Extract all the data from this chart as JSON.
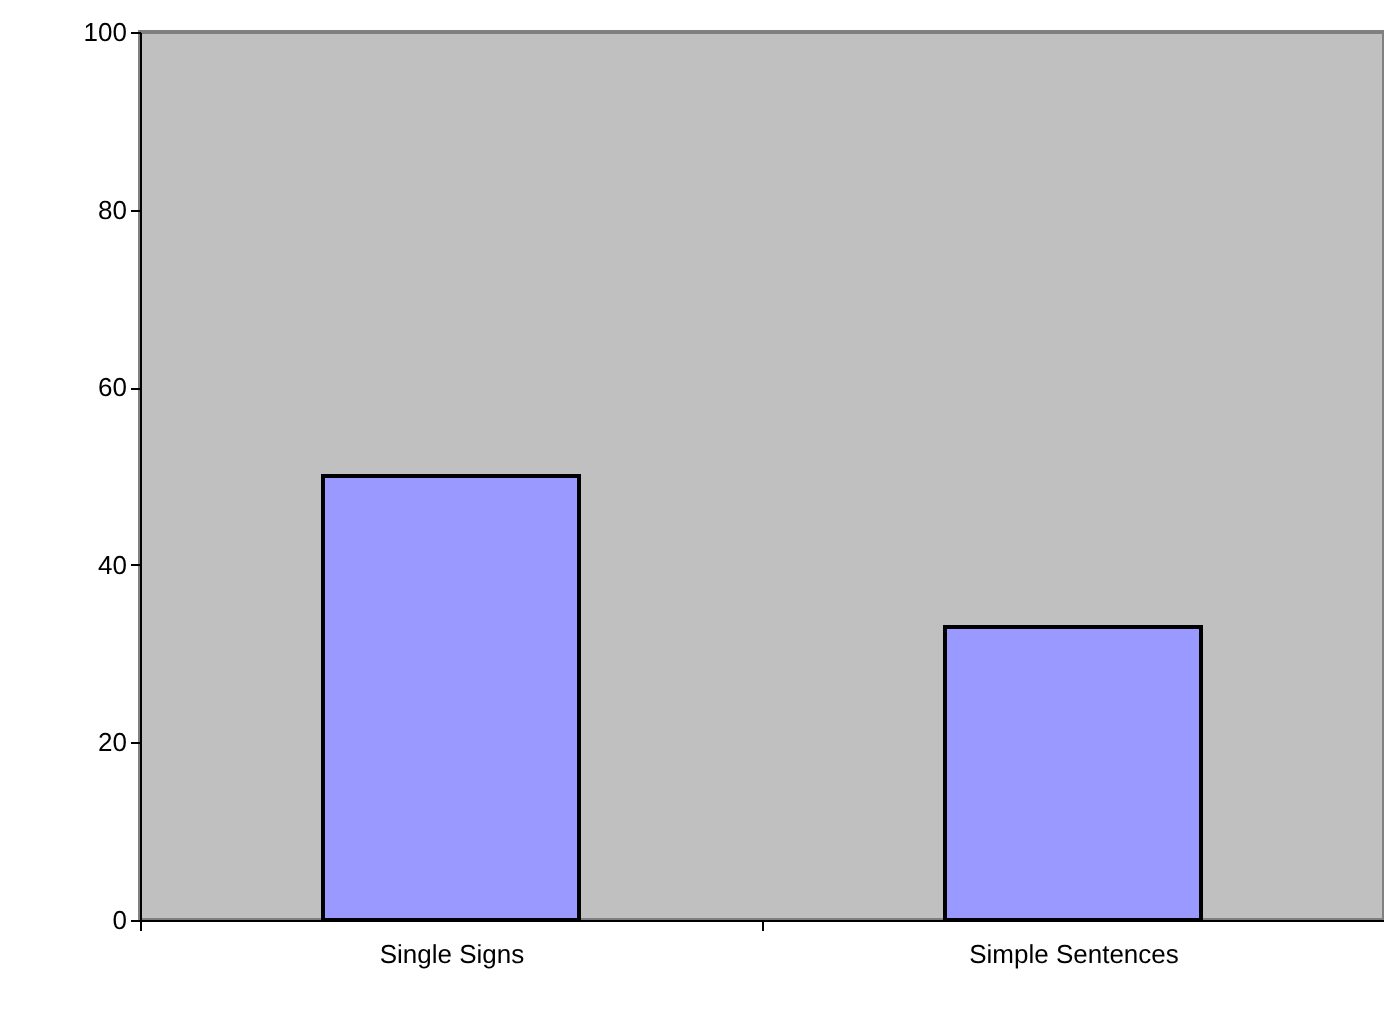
{
  "chart_data": {
    "type": "bar",
    "categories": [
      "Single Signs",
      "Simple Sentences"
    ],
    "values": [
      50,
      33
    ],
    "color": "#9999ff",
    "ylim": [
      0,
      100
    ],
    "yticks": [
      0,
      20,
      40,
      60,
      80,
      100
    ],
    "grid": false
  }
}
